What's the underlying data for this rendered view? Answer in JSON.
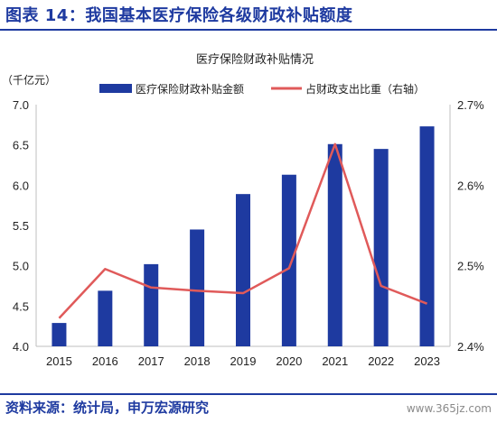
{
  "figure": {
    "title": "图表 14：我国基本医疗保险各级财政补贴额度",
    "source": "资料来源：统计局，申万宏源研究",
    "watermark": "www.365jz.com"
  },
  "colors": {
    "bar": "#1e3aa0",
    "line": "#e05a5a",
    "accent": "#1e3aa0"
  },
  "chart_data": {
    "type": "bar",
    "title": "医疗保险财政补贴情况",
    "y_unit_label": "（千亿元）",
    "categories": [
      "2015",
      "2016",
      "2017",
      "2018",
      "2019",
      "2020",
      "2021",
      "2022",
      "2023"
    ],
    "series": [
      {
        "name": "医疗保险财政补贴金额",
        "type": "bar",
        "axis": "left",
        "values": [
          4.29,
          4.69,
          5.02,
          5.45,
          5.89,
          6.13,
          6.51,
          6.45,
          6.73
        ]
      },
      {
        "name": "占财政支出比重（右轴）",
        "type": "line",
        "axis": "right",
        "values": [
          2.435,
          2.496,
          2.473,
          2.469,
          2.466,
          2.497,
          2.651,
          2.475,
          2.453
        ]
      }
    ],
    "y_left": {
      "min": 4.0,
      "max": 7.0,
      "ticks": [
        "4.0",
        "4.5",
        "5.0",
        "5.5",
        "6.0",
        "6.5",
        "7.0"
      ]
    },
    "y_right": {
      "min": 2.4,
      "max": 2.7,
      "ticks": [
        "2.4%",
        "2.5%",
        "2.6%",
        "2.7%"
      ]
    },
    "grid": false,
    "legend_position": "top"
  }
}
